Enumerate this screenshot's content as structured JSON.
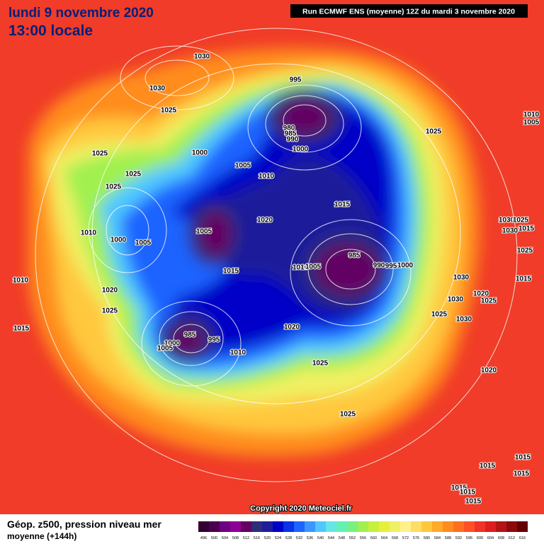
{
  "header": {
    "title": "lundi 9 novembre 2020",
    "time": "13:00 locale",
    "run": "Run ECMWF ENS (moyenne) 12Z du mardi 3 novembre 2020"
  },
  "map": {
    "copyright": "Copyright 2020 Meteociel.fr",
    "isobar_labels": [
      1030,
      1030,
      1025,
      995,
      980,
      985,
      990,
      1000,
      1025,
      1010,
      1005,
      1025,
      1000,
      1025,
      1025,
      1005,
      1010,
      1015,
      1020,
      1005,
      1010,
      1000,
      1005,
      985,
      1010,
      1005,
      990,
      995,
      1000,
      1030,
      1025,
      1030,
      1015,
      1025,
      1015,
      1030,
      1015,
      1010,
      1020,
      1020,
      1030,
      1025,
      1025,
      1025,
      1030,
      1015,
      1020,
      985,
      995,
      1000,
      1005,
      1010,
      1025,
      1020,
      1025,
      1015,
      1015,
      1015,
      1015,
      1015,
      1015
    ]
  },
  "footer": {
    "caption": "Géop. z500, pression niveau mer",
    "subcaption": "moyenne  (+144h)"
  },
  "legend": {
    "labels": [
      496,
      500,
      504,
      508,
      512,
      516,
      520,
      524,
      528,
      532,
      536,
      540,
      544,
      548,
      552,
      556,
      560,
      564,
      568,
      572,
      576,
      580,
      584,
      588,
      592,
      596,
      600,
      604,
      608,
      612,
      616
    ],
    "colors": [
      "#320032",
      "#4b0050",
      "#6e0082",
      "#8c0096",
      "#640064",
      "#2d2d78",
      "#1e1e9b",
      "#0000c8",
      "#0a32e6",
      "#1e64ff",
      "#3c96ff",
      "#50c8ff",
      "#64e6e6",
      "#64f0b4",
      "#78f082",
      "#a0f050",
      "#c8f03c",
      "#e6f03c",
      "#f0f064",
      "#fff08c",
      "#ffdc64",
      "#ffc83c",
      "#ffaa28",
      "#ff8c1e",
      "#ff6e1e",
      "#ff5028",
      "#f03228",
      "#dc1e1e",
      "#b41414",
      "#8c0a0a",
      "#640000"
    ]
  }
}
